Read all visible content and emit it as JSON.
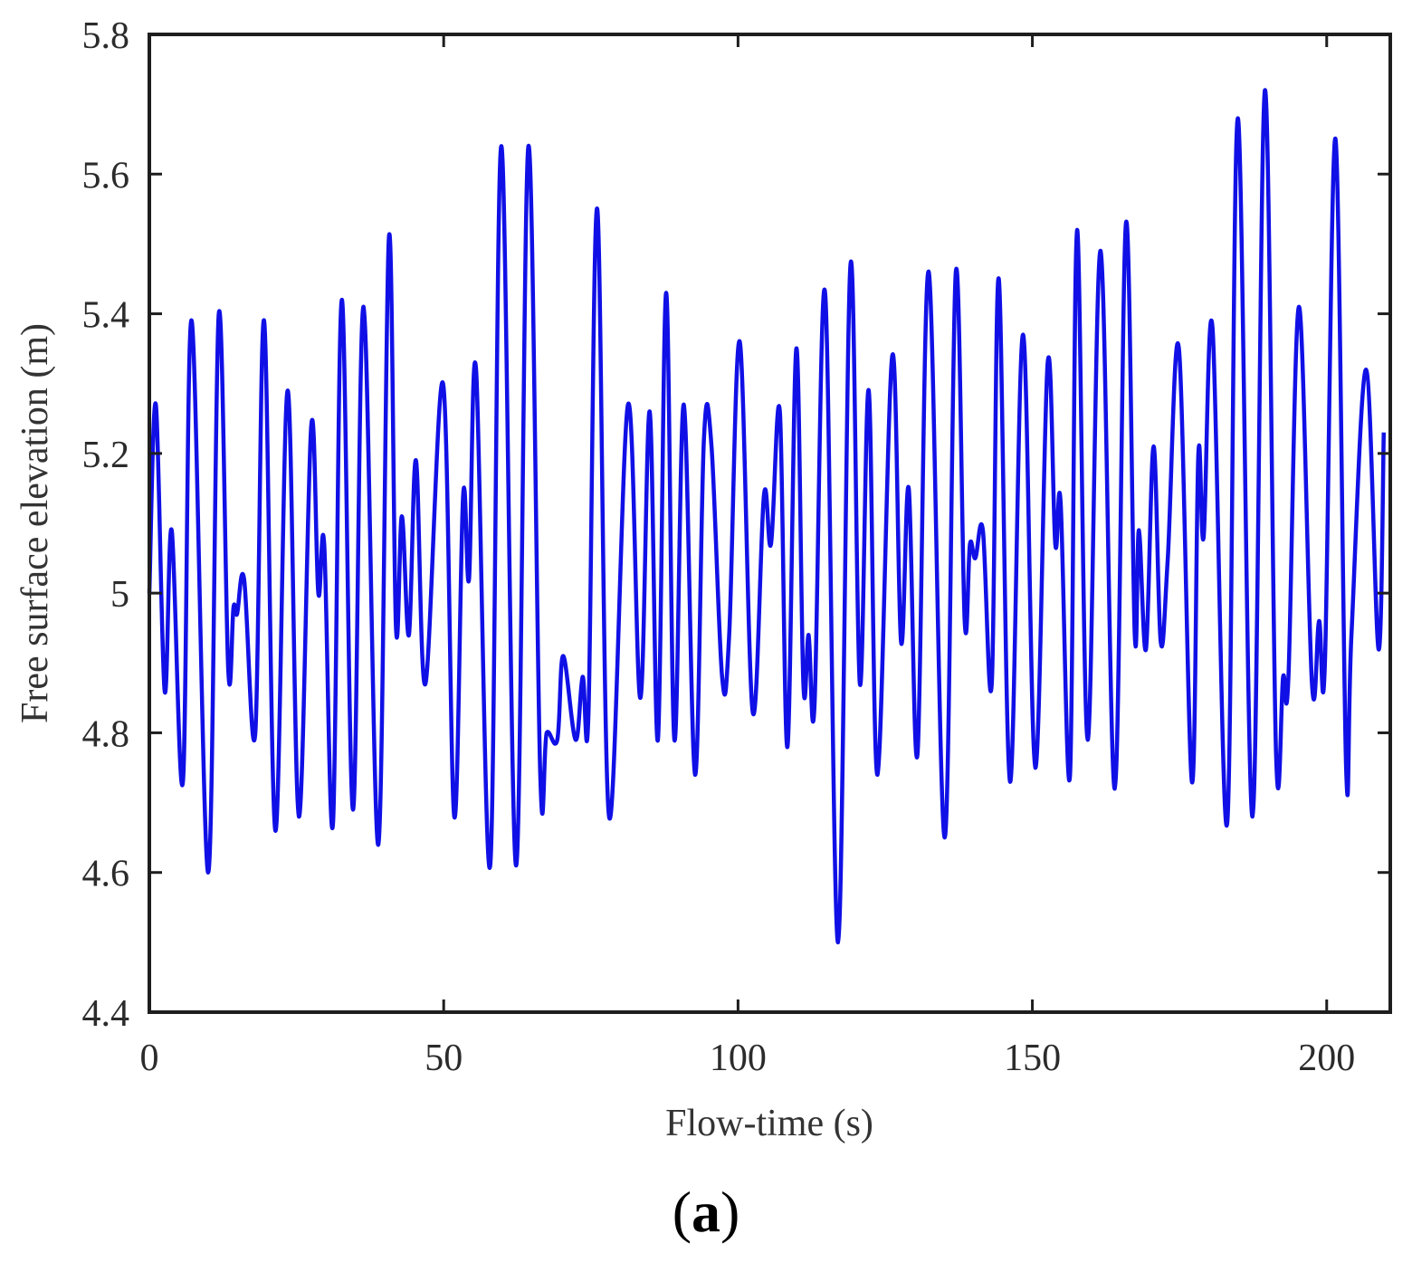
{
  "chart_data": {
    "type": "line",
    "title": "",
    "xlabel": "Flow-time (s)",
    "ylabel": "Free surface elevation (m)",
    "xlim": [
      0,
      210.8
    ],
    "ylim": [
      4.4,
      5.8
    ],
    "xticks": [
      0,
      50,
      100,
      150,
      200
    ],
    "yticks": [
      4.4,
      4.6,
      4.8,
      5.0,
      5.2,
      5.4,
      5.6,
      5.8
    ],
    "xtick_labels": [
      "0",
      "50",
      "100",
      "150",
      "200"
    ],
    "ytick_labels": [
      "4.4",
      "4.6",
      "4.8",
      "5",
      "5.2",
      "5.4",
      "5.6",
      "5.8"
    ],
    "grid": false,
    "legend": null,
    "line_color": "#1010e6",
    "series": [
      {
        "name": "Free surface elevation",
        "x": [
          0.0,
          1.1,
          2.6,
          3.8,
          5.7,
          7.2,
          10.0,
          11.8,
          13.4,
          14.3,
          14.9,
          16.1,
          18.0,
          19.5,
          21.4,
          23.5,
          25.4,
          27.5,
          28.7,
          29.7,
          31.2,
          32.7,
          34.6,
          36.4,
          38.9,
          40.7,
          41.9,
          42.9,
          44.1,
          45.3,
          46.9,
          49.9,
          51.8,
          53.3,
          54.3,
          55.5,
          57.9,
          59.8,
          62.3,
          64.4,
          66.4,
          67.5,
          69.3,
          70.3,
          72.4,
          73.6,
          74.6,
          76.1,
          78.1,
          81.3,
          83.4,
          85.0,
          86.4,
          87.8,
          89.2,
          90.8,
          92.7,
          94.2,
          95.5,
          97.3,
          98.5,
          100.3,
          102.5,
          104.4,
          105.6,
          107.1,
          108.4,
          109.9,
          111.1,
          112.0,
          113.0,
          114.8,
          117.0,
          119.1,
          120.7,
          122.2,
          123.7,
          126.2,
          127.7,
          129.0,
          130.5,
          132.4,
          135.1,
          137.0,
          138.5,
          139.4,
          140.3,
          141.6,
          143.1,
          144.3,
          146.2,
          148.4,
          150.5,
          152.6,
          153.9,
          154.8,
          156.4,
          157.6,
          159.4,
          161.6,
          164.0,
          165.9,
          167.4,
          168.1,
          169.3,
          170.6,
          171.8,
          173.0,
          174.9,
          177.1,
          178.2,
          179.1,
          180.6,
          183.1,
          184.9,
          187.4,
          189.5,
          191.4,
          192.6,
          193.5,
          195.3,
          197.5,
          198.7,
          199.7,
          201.5,
          203.3,
          204.2,
          206.7,
          208.8,
          209.7
        ],
        "values": [
          5.0,
          5.27,
          4.86,
          5.09,
          4.73,
          5.39,
          4.6,
          5.4,
          4.89,
          4.98,
          4.97,
          5.02,
          4.8,
          5.39,
          4.66,
          5.29,
          4.68,
          5.24,
          5.0,
          5.07,
          4.67,
          5.42,
          4.69,
          5.41,
          4.64,
          5.51,
          4.95,
          5.11,
          4.94,
          5.19,
          4.87,
          5.3,
          4.68,
          5.14,
          5.02,
          5.32,
          4.61,
          5.64,
          4.61,
          5.64,
          4.74,
          4.8,
          4.79,
          4.91,
          4.79,
          4.88,
          4.83,
          5.55,
          4.68,
          5.27,
          4.85,
          5.26,
          4.79,
          5.43,
          4.79,
          5.27,
          4.74,
          5.22,
          5.21,
          4.88,
          4.94,
          5.36,
          4.83,
          5.14,
          5.07,
          5.26,
          4.78,
          5.35,
          4.87,
          4.94,
          4.84,
          5.43,
          4.5,
          5.47,
          4.87,
          5.29,
          4.74,
          5.34,
          4.93,
          5.15,
          4.77,
          5.46,
          4.65,
          5.46,
          4.96,
          5.07,
          5.05,
          5.09,
          4.87,
          5.45,
          4.73,
          5.37,
          4.75,
          5.33,
          5.07,
          5.13,
          4.74,
          5.52,
          4.79,
          5.49,
          4.72,
          5.53,
          4.94,
          5.09,
          4.92,
          5.21,
          4.93,
          5.05,
          5.35,
          4.73,
          5.2,
          5.08,
          5.38,
          4.67,
          5.68,
          4.68,
          5.72,
          4.77,
          4.88,
          4.88,
          5.41,
          4.87,
          4.96,
          4.9,
          5.65,
          4.75,
          4.94,
          5.32,
          4.92,
          5.23
        ]
      }
    ],
    "caption": "(a)"
  },
  "caption": {
    "open": "(",
    "letter": "a",
    "close": ")"
  }
}
